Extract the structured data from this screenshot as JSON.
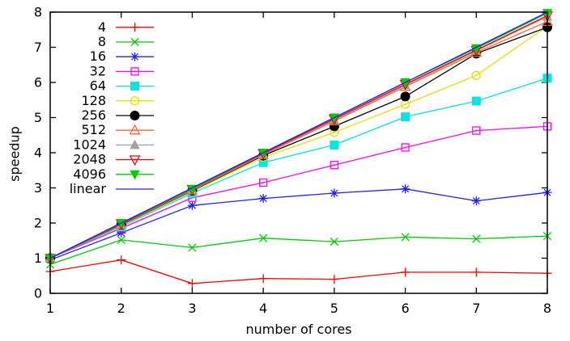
{
  "chart_data": {
    "type": "line",
    "title": "",
    "xlabel": "number of cores",
    "ylabel": "speedup",
    "xlim": [
      1,
      8
    ],
    "ylim": [
      0,
      8
    ],
    "xticks": [
      1,
      2,
      3,
      4,
      5,
      6,
      7,
      8
    ],
    "yticks": [
      0,
      1,
      2,
      3,
      4,
      5,
      6,
      7,
      8
    ],
    "grid": false,
    "legend_position": "top-left",
    "background_color": "#ffffff",
    "axis_color": "#000000",
    "x": [
      1,
      2,
      3,
      4,
      5,
      6,
      7,
      8
    ],
    "series": [
      {
        "name": "4",
        "color": "#ff0000",
        "marker": "plus",
        "values": [
          0.62,
          0.95,
          0.28,
          0.42,
          0.4,
          0.6,
          0.6,
          0.57
        ]
      },
      {
        "name": "8",
        "color": "#00cc00",
        "marker": "cross",
        "values": [
          0.82,
          1.52,
          1.3,
          1.57,
          1.47,
          1.6,
          1.55,
          1.63
        ]
      },
      {
        "name": "16",
        "color": "#2020ff",
        "marker": "asterisk",
        "values": [
          0.95,
          1.72,
          2.5,
          2.7,
          2.85,
          2.97,
          2.63,
          2.87
        ]
      },
      {
        "name": "32",
        "color": "#ff00ff",
        "marker": "square-open",
        "values": [
          1.0,
          1.85,
          2.72,
          3.15,
          3.65,
          4.15,
          4.63,
          4.75
        ]
      },
      {
        "name": "64",
        "color": "#00e5e5",
        "marker": "square-filled",
        "values": [
          1.0,
          1.9,
          2.85,
          3.72,
          4.22,
          5.02,
          5.47,
          6.12
        ]
      },
      {
        "name": "128",
        "color": "#e8df00",
        "marker": "circle-open",
        "values": [
          1.0,
          1.93,
          2.9,
          3.87,
          4.58,
          5.38,
          6.2,
          7.6
        ]
      },
      {
        "name": "256",
        "color": "#000000",
        "marker": "circle-filled",
        "values": [
          1.0,
          1.95,
          2.92,
          3.92,
          4.75,
          5.6,
          6.82,
          7.57
        ]
      },
      {
        "name": "512",
        "color": "#ff6633",
        "marker": "triangle-up-open",
        "values": [
          1.0,
          1.96,
          2.93,
          3.94,
          4.9,
          5.88,
          6.85,
          7.73
        ]
      },
      {
        "name": "1024",
        "color": "#a0a0a0",
        "marker": "triangle-up-filled",
        "values": [
          1.0,
          1.97,
          2.95,
          3.96,
          4.93,
          5.92,
          6.9,
          7.87
        ]
      },
      {
        "name": "2048",
        "color": "#ff0000",
        "marker": "triangle-down-open",
        "values": [
          1.0,
          1.98,
          2.96,
          3.98,
          4.96,
          5.95,
          6.92,
          7.9
        ]
      },
      {
        "name": "4096",
        "color": "#00cc00",
        "marker": "triangle-down-filled",
        "values": [
          1.0,
          2.0,
          2.97,
          4.0,
          5.0,
          6.0,
          6.97,
          7.97
        ]
      },
      {
        "name": "linear",
        "color": "#2020ff",
        "marker": "none",
        "values": [
          1,
          2,
          3,
          4,
          5,
          6,
          7,
          8
        ]
      }
    ]
  }
}
